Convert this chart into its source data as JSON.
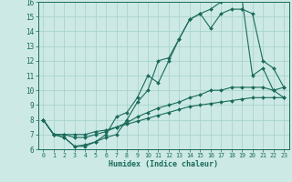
{
  "xlabel": "Humidex (Indice chaleur)",
  "bg_color": "#cce9e5",
  "grid_color": "#aad4ce",
  "line_color": "#1a6b5a",
  "xlim_min": -0.5,
  "xlim_max": 23.5,
  "ylim_min": 6,
  "ylim_max": 16,
  "xticks": [
    0,
    1,
    2,
    3,
    4,
    5,
    6,
    7,
    8,
    9,
    10,
    11,
    12,
    13,
    14,
    15,
    16,
    17,
    18,
    19,
    20,
    21,
    22,
    23
  ],
  "yticks": [
    6,
    7,
    8,
    9,
    10,
    11,
    12,
    13,
    14,
    15,
    16
  ],
  "series": [
    {
      "x": [
        0,
        1,
        2,
        3,
        4,
        5,
        6,
        7,
        8,
        9,
        10,
        11,
        12,
        13,
        14,
        15,
        16,
        17,
        18,
        19,
        20,
        21,
        22,
        23
      ],
      "y": [
        8.0,
        7.0,
        7.0,
        7.0,
        7.0,
        7.2,
        7.3,
        7.5,
        7.7,
        7.9,
        8.1,
        8.3,
        8.5,
        8.7,
        8.9,
        9.0,
        9.1,
        9.2,
        9.3,
        9.4,
        9.5,
        9.5,
        9.5,
        9.5
      ]
    },
    {
      "x": [
        0,
        1,
        2,
        3,
        4,
        5,
        6,
        7,
        8,
        9,
        10,
        11,
        12,
        13,
        14,
        15,
        16,
        17,
        18,
        19,
        20,
        21,
        22,
        23
      ],
      "y": [
        8.0,
        7.0,
        7.0,
        6.8,
        6.8,
        7.0,
        7.2,
        7.5,
        7.8,
        8.2,
        8.5,
        8.8,
        9.0,
        9.2,
        9.5,
        9.7,
        10.0,
        10.0,
        10.2,
        10.2,
        10.2,
        10.2,
        10.0,
        9.5
      ]
    },
    {
      "x": [
        0,
        1,
        2,
        3,
        4,
        5,
        6,
        7,
        8,
        9,
        10,
        11,
        12,
        13,
        14,
        15,
        16,
        17,
        18,
        19,
        20,
        21,
        22,
        23
      ],
      "y": [
        8.0,
        7.0,
        6.8,
        6.2,
        6.3,
        6.5,
        6.8,
        7.0,
        8.0,
        9.2,
        10.0,
        12.0,
        12.2,
        13.5,
        14.8,
        15.2,
        15.5,
        16.0,
        16.2,
        16.2,
        11.0,
        11.5,
        10.0,
        10.2
      ]
    },
    {
      "x": [
        0,
        1,
        2,
        3,
        4,
        5,
        6,
        7,
        8,
        9,
        10,
        11,
        12,
        13,
        14,
        15,
        16,
        17,
        18,
        19,
        20,
        21,
        22,
        23
      ],
      "y": [
        8.0,
        7.0,
        6.8,
        6.2,
        6.2,
        6.5,
        7.0,
        8.2,
        8.5,
        9.5,
        11.0,
        10.5,
        12.0,
        13.5,
        14.8,
        15.2,
        14.2,
        15.2,
        15.5,
        15.5,
        15.2,
        12.0,
        11.5,
        10.2
      ]
    }
  ]
}
